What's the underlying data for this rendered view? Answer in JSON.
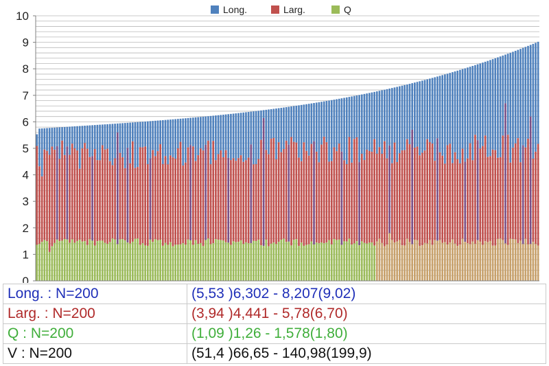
{
  "chart_data": {
    "type": "bar",
    "title": "",
    "xlabel": "",
    "ylabel": "",
    "ylim": [
      0,
      10
    ],
    "yticks": [
      0,
      1,
      2,
      3,
      4,
      5,
      6,
      7,
      8,
      9,
      10
    ],
    "grid": true,
    "legend_position": "top",
    "x": [
      1,
      200
    ],
    "series": [
      {
        "name": "Long.",
        "color": "#4f81bd",
        "range": [
          5.53,
          9.02
        ],
        "trend": "ascending"
      },
      {
        "name": "Larg.",
        "color": "#c0504d",
        "range": [
          3.94,
          6.7
        ],
        "typical": [
          4.2,
          5.3
        ]
      },
      {
        "name": "Q",
        "color": "#9bbb59",
        "range": [
          1.09,
          1.8
        ],
        "typical": [
          1.3,
          1.6
        ]
      }
    ]
  },
  "stats": [
    {
      "label": "Long. : N=200",
      "value": "(5,53 )6,302 - 8,207(9,02)"
    },
    {
      "label": "Larg. : N=200",
      "value": "(3,94 )4,441 - 5,78(6,70)"
    },
    {
      "label": "Q : N=200",
      "value": "(1,09 )1,26 - 1,578(1,80)"
    },
    {
      "label": "V : N=200",
      "value": "(51,4 )66,65 - 140,98(199,9)"
    }
  ]
}
